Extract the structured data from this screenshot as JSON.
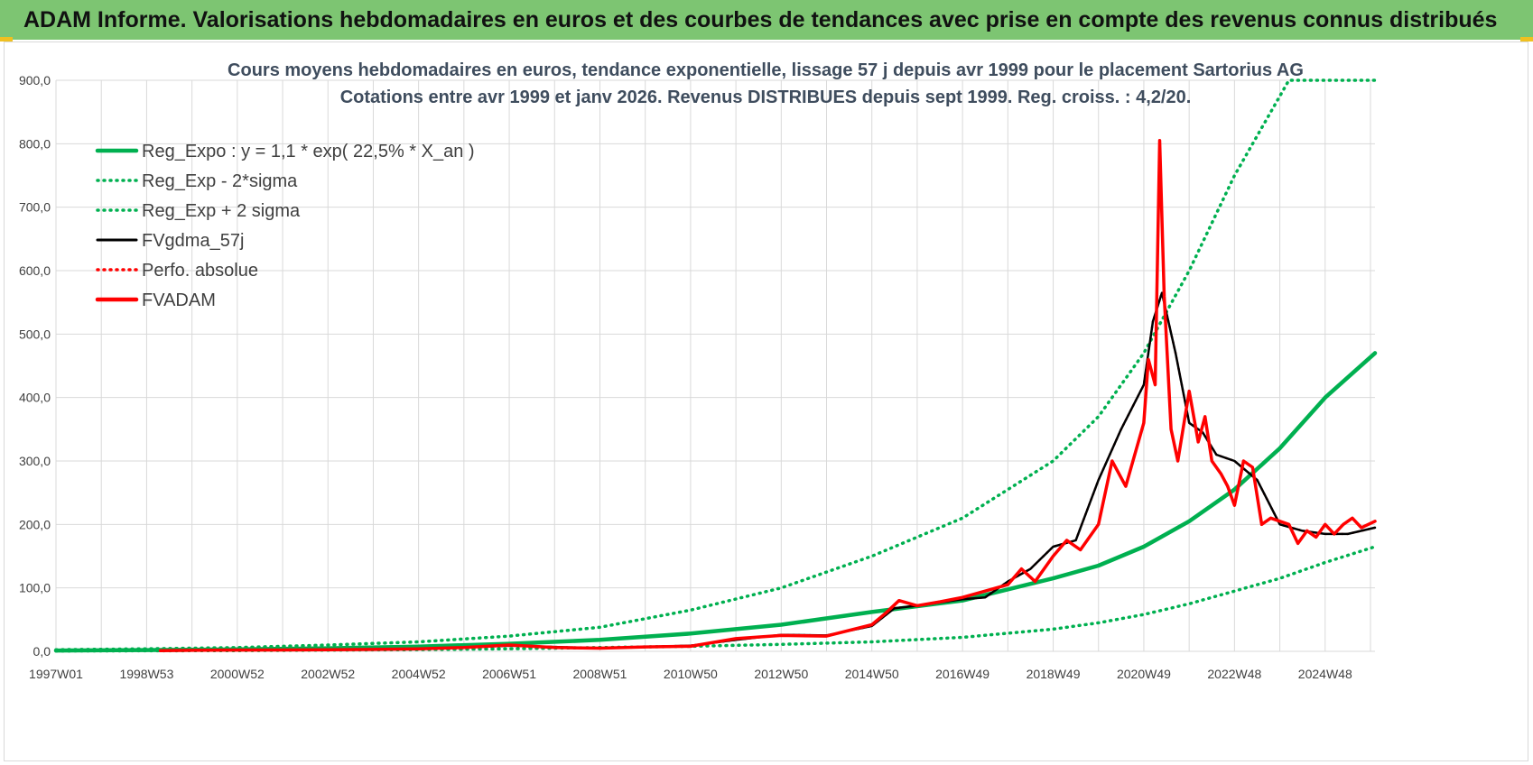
{
  "banner": {
    "title": "ADAM Informe. Valorisations hebdomadaires en euros et des courbes de tendances avec prise en compte des revenus connus distribués"
  },
  "colors": {
    "banner_bg": "#7dc572",
    "green": "#00b050",
    "black": "#000000",
    "red": "#ff0000",
    "grid": "#d9d9d9"
  },
  "chart_data": {
    "type": "line",
    "title_line1": "Cours moyens hebdomadaires en euros, tendance exponentielle, lissage 57 j depuis avr 1999 pour le placement Sartorius AG",
    "title_line2": "Cotations entre avr 1999 et janv 2026. Revenus DISTRIBUES depuis sept 1999. Reg. croiss. : 4,2/20.",
    "xlabel": "",
    "ylabel": "",
    "xlim": [
      1997.0,
      2026.1
    ],
    "ylim": [
      0,
      900
    ],
    "y_ticks": [
      "0,0",
      "100,0",
      "200,0",
      "300,0",
      "400,0",
      "500,0",
      "600,0",
      "700,0",
      "800,0",
      "900,0"
    ],
    "x_tick_labels": [
      "1997W01",
      "1998W53",
      "2000W52",
      "2002W52",
      "2004W52",
      "2006W51",
      "2008W51",
      "2010W50",
      "2012W50",
      "2014W50",
      "2016W49",
      "2018W49",
      "2020W49",
      "2022W48",
      "2024W48"
    ],
    "x_tick_values": [
      1997.0,
      1999.0,
      2001.0,
      2003.0,
      2005.0,
      2007.0,
      2009.0,
      2011.0,
      2013.0,
      2015.0,
      2017.0,
      2019.0,
      2021.0,
      2023.0,
      2025.0
    ],
    "legend": [
      {
        "label": "Reg_Expo : y = 1,1 * exp( 22,5% *  X_an )",
        "style": "solid-thick",
        "color": "#00b050"
      },
      {
        "label": "Reg_Exp - 2*sigma",
        "style": "dotted",
        "color": "#00b050"
      },
      {
        "label": "Reg_Exp + 2 sigma",
        "style": "dotted",
        "color": "#00b050"
      },
      {
        "label": "FVgdma_57j",
        "style": "solid",
        "color": "#000000"
      },
      {
        "label": "Perfo. absolue",
        "style": "dotted",
        "color": "#ff0000"
      },
      {
        "label": "FVADAM",
        "style": "solid-thick",
        "color": "#ff0000"
      }
    ],
    "series": [
      {
        "name": "Reg_Expo",
        "x": [
          1997,
          1999,
          2001,
          2003,
          2005,
          2007,
          2009,
          2011,
          2013,
          2015,
          2017,
          2019,
          2020,
          2021,
          2022,
          2023,
          2024,
          2025,
          2026.1
        ],
        "values": [
          1.3,
          2.0,
          3.1,
          4.9,
          7.6,
          12,
          18,
          28,
          42,
          62,
          80,
          115,
          135,
          165,
          205,
          255,
          320,
          400,
          470
        ]
      },
      {
        "name": "Reg_Exp - 2*sigma",
        "x": [
          1997,
          1999,
          2001,
          2003,
          2005,
          2007,
          2009,
          2011,
          2013,
          2015,
          2017,
          2019,
          2020,
          2021,
          2022,
          2023,
          2024,
          2025,
          2026.1
        ],
        "values": [
          0.5,
          0.8,
          1.2,
          1.8,
          2.7,
          4,
          6,
          8,
          11,
          15,
          22,
          35,
          45,
          58,
          75,
          95,
          115,
          140,
          165
        ]
      },
      {
        "name": "Reg_Exp + 2 sigma",
        "x": [
          1997,
          1999,
          2001,
          2003,
          2005,
          2007,
          2009,
          2011,
          2013,
          2015,
          2017,
          2019,
          2020,
          2021,
          2022,
          2023,
          2024.2,
          2025,
          2026.1
        ],
        "values": [
          2.5,
          4,
          6,
          10,
          15,
          24,
          38,
          65,
          100,
          150,
          210,
          300,
          370,
          470,
          600,
          750,
          900,
          900,
          900
        ]
      },
      {
        "name": "FVgdma_57j",
        "x": [
          1999.3,
          2000,
          2001,
          2002,
          2003,
          2004,
          2005,
          2006,
          2007,
          2008,
          2009,
          2010,
          2011,
          2012,
          2013,
          2014,
          2015,
          2015.5,
          2016,
          2017,
          2017.5,
          2018,
          2018.5,
          2019,
          2019.5,
          2020,
          2020.5,
          2021,
          2021.2,
          2021.4,
          2021.7,
          2022,
          2022.3,
          2022.6,
          2023,
          2023.5,
          2024,
          2024.5,
          2025,
          2025.5,
          2026.1
        ],
        "values": [
          1,
          1.5,
          2,
          2.3,
          2.6,
          3,
          4,
          6,
          9,
          7,
          5,
          7,
          9,
          18,
          26,
          25,
          40,
          68,
          72,
          82,
          85,
          110,
          130,
          165,
          175,
          270,
          350,
          420,
          520,
          565,
          470,
          360,
          345,
          310,
          300,
          270,
          200,
          190,
          185,
          185,
          195
        ]
      },
      {
        "name": "Perfo. absolue",
        "x": [
          1999.3,
          2000,
          2001,
          2002,
          2003,
          2004,
          2005,
          2006,
          2007,
          2008,
          2009,
          2010,
          2011,
          2012,
          2013,
          2014,
          2015,
          2015.5,
          2016,
          2017,
          2017.5,
          2018,
          2018.5,
          2019,
          2019.5,
          2020,
          2020.5,
          2021,
          2021.2,
          2021.4,
          2021.7,
          2022,
          2022.3,
          2022.6,
          2023,
          2023.5,
          2024,
          2024.5,
          2025,
          2025.5,
          2026.1
        ],
        "values": [
          1,
          1.5,
          2,
          2.3,
          2.6,
          3,
          4,
          6,
          9,
          7,
          5,
          7,
          9,
          18,
          26,
          25,
          40,
          68,
          72,
          82,
          85,
          110,
          130,
          165,
          175,
          270,
          350,
          420,
          520,
          565,
          470,
          360,
          345,
          310,
          300,
          270,
          200,
          190,
          185,
          185,
          195
        ]
      },
      {
        "name": "FVADAM",
        "x": [
          1999.3,
          2000,
          2001,
          2002,
          2003,
          2004,
          2005,
          2006,
          2007,
          2008,
          2009,
          2010,
          2011,
          2012,
          2013,
          2014,
          2015,
          2015.3,
          2015.6,
          2016,
          2016.5,
          2017,
          2017.5,
          2018,
          2018.3,
          2018.6,
          2019,
          2019.3,
          2019.6,
          2020,
          2020.3,
          2020.6,
          2021,
          2021.1,
          2021.25,
          2021.35,
          2021.45,
          2021.6,
          2021.75,
          2022,
          2022.2,
          2022.35,
          2022.5,
          2022.7,
          2022.85,
          2023,
          2023.2,
          2023.4,
          2023.6,
          2023.8,
          2024,
          2024.2,
          2024.4,
          2024.6,
          2024.8,
          2025,
          2025.2,
          2025.4,
          2025.6,
          2025.8,
          2026.1
        ],
        "values": [
          1,
          1.5,
          2,
          2.2,
          2.5,
          3,
          4,
          6,
          10,
          6,
          5,
          7,
          8,
          20,
          25,
          24,
          42,
          60,
          80,
          72,
          78,
          85,
          95,
          105,
          130,
          110,
          150,
          175,
          160,
          200,
          300,
          260,
          360,
          460,
          420,
          805,
          560,
          350,
          300,
          410,
          330,
          370,
          300,
          280,
          260,
          230,
          300,
          290,
          200,
          210,
          205,
          200,
          170,
          190,
          180,
          200,
          185,
          200,
          210,
          195,
          205
        ]
      }
    ]
  }
}
